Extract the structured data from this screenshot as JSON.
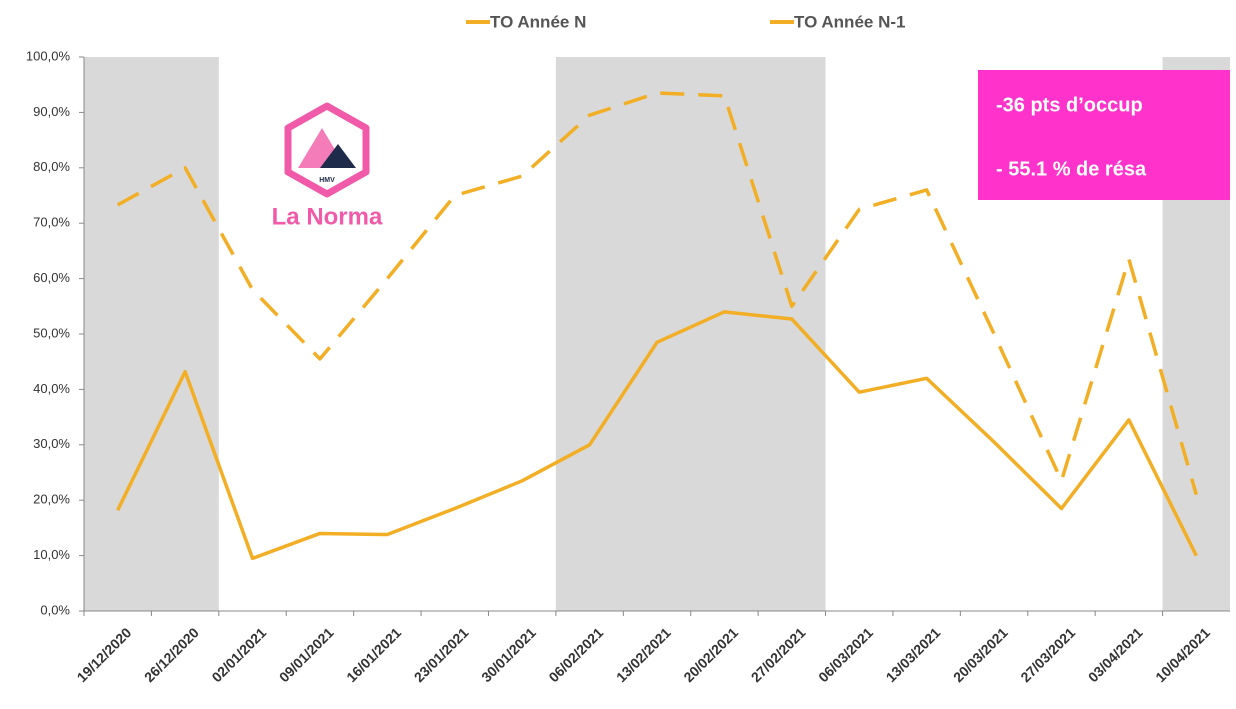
{
  "chart_data": {
    "type": "line",
    "categories": [
      "19/12/2020",
      "26/12/2020",
      "02/01/2021",
      "09/01/2021",
      "16/01/2021",
      "23/01/2021",
      "30/01/2021",
      "06/02/2021",
      "13/02/2021",
      "20/02/2021",
      "27/02/2021",
      "06/03/2021",
      "13/03/2021",
      "20/03/2021",
      "27/03/2021",
      "03/04/2021",
      "10/04/2021"
    ],
    "series": [
      {
        "name": "TO Année N",
        "color": "#f2ae24",
        "style": "solid",
        "values": [
          18.2,
          43.2,
          9.5,
          14,
          13.8,
          18.5,
          23.5,
          30,
          48.5,
          54,
          52.7,
          39.5,
          42,
          30.5,
          18.5,
          34.5,
          10
        ]
      },
      {
        "name": "TO Année N-1",
        "color": "#f2ae24",
        "style": "dashed",
        "values": [
          73.3,
          80,
          58,
          45.5,
          60,
          75,
          78.5,
          89.5,
          93.5,
          93,
          55,
          72.5,
          76,
          50,
          23.5,
          63.5,
          21
        ]
      }
    ],
    "ylim": [
      0,
      100
    ],
    "yticks": [
      {
        "value": 0,
        "label": "0,0%"
      },
      {
        "value": 10,
        "label": "10,0%"
      },
      {
        "value": 20,
        "label": "20,0%"
      },
      {
        "value": 30,
        "label": "30,0%"
      },
      {
        "value": 40,
        "label": "40,0%"
      },
      {
        "value": 50,
        "label": "50,0%"
      },
      {
        "value": 60,
        "label": "60,0%"
      },
      {
        "value": 70,
        "label": "70,0%"
      },
      {
        "value": 80,
        "label": "80,0%"
      },
      {
        "value": 90,
        "label": "90,0%"
      },
      {
        "value": 100,
        "label": "100,0%"
      }
    ],
    "grid": false,
    "legend": "top",
    "annotations": [
      "-36 pts d’occup",
      "- 55.1 % de résa"
    ],
    "logo": {
      "name": "La Norma",
      "badge": "HMV"
    }
  }
}
